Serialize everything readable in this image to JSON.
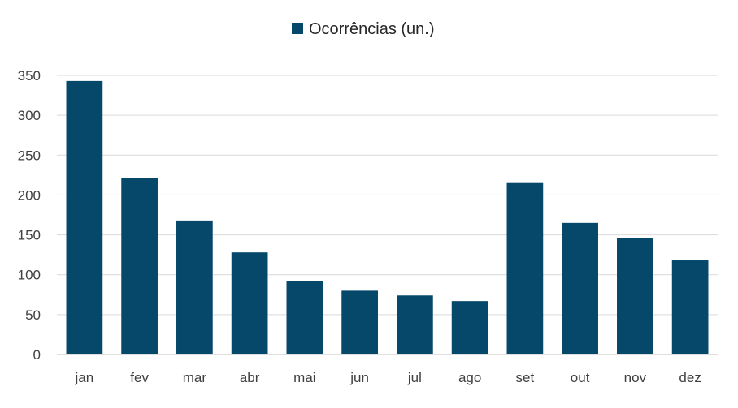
{
  "chart_data": {
    "type": "bar",
    "categories": [
      "jan",
      "fev",
      "mar",
      "abr",
      "mai",
      "jun",
      "jul",
      "ago",
      "set",
      "out",
      "nov",
      "dez"
    ],
    "series": [
      {
        "name": "Ocorrências (un.)",
        "values": [
          343,
          221,
          168,
          128,
          92,
          80,
          74,
          67,
          216,
          165,
          146,
          118
        ]
      }
    ],
    "title": "",
    "xlabel": "",
    "ylabel": "",
    "ylim": [
      0,
      350
    ],
    "yticks": [
      "0",
      "50",
      "100",
      "150",
      "200",
      "250",
      "300",
      "350"
    ],
    "grid": true,
    "legend_position": "top-center",
    "bar_color": "#05486A"
  }
}
